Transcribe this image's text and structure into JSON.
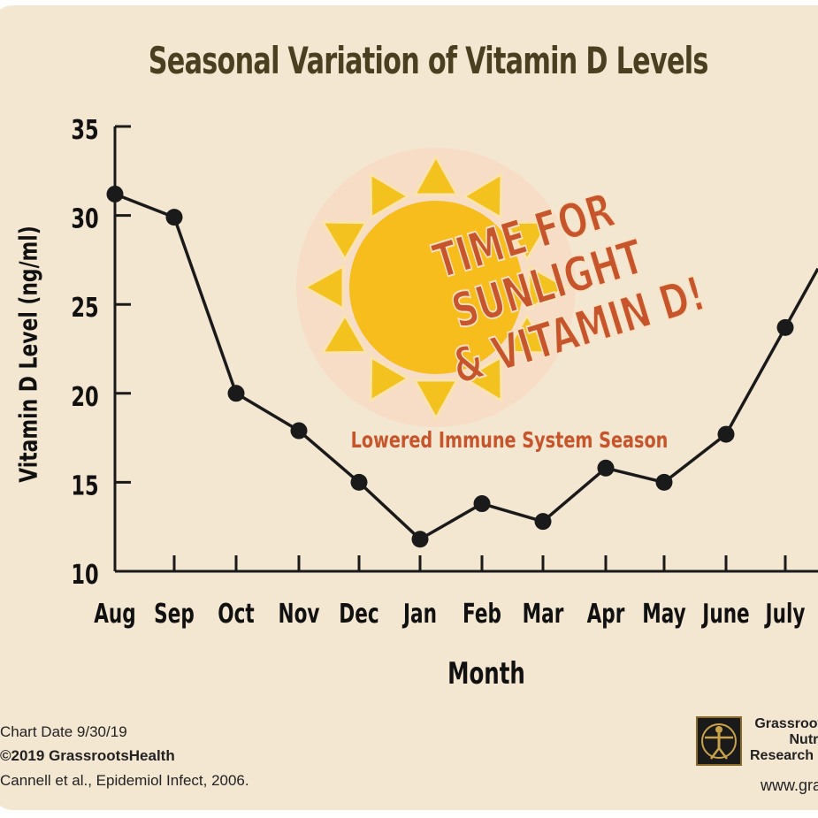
{
  "chart_data": {
    "type": "line",
    "title": "Seasonal Variation of Vitamin D Levels",
    "xlabel": "Month",
    "ylabel": "Vitamin D Level (ng/ml)",
    "categories": [
      "Aug",
      "Sep",
      "Oct",
      "Nov",
      "Dec",
      "Jan",
      "Feb",
      "Mar",
      "Apr",
      "May",
      "June",
      "July"
    ],
    "values": [
      31.2,
      29.9,
      20.0,
      17.9,
      15.0,
      11.8,
      13.8,
      12.8,
      15.8,
      15.0,
      17.7,
      23.7
    ],
    "ylim": [
      10,
      35
    ],
    "yticks": [
      10,
      15,
      20,
      25,
      30,
      35
    ],
    "grid": false,
    "line_color": "#1a1a1a",
    "annotations": {
      "sun_text_lines": [
        "TIME FOR",
        "SUNLIGHT",
        "& VITAMIN D!"
      ],
      "season_label": "Lowered Immune System Season"
    }
  },
  "footer": {
    "chart_date": "Chart Date 9/30/19",
    "copyright": "©2019 GrassrootsHealth",
    "source": "Cannell et al., Epidemiol Infect, 2006."
  },
  "org": {
    "lines": [
      "Grassroots",
      "Nutrie",
      "Research In"
    ],
    "website": "www.gra"
  },
  "colors": {
    "background": "#f3e7d2",
    "sun_core": "#f6bd1c",
    "sun_ray": "#f3c21f",
    "annotation_text": "#c7552b",
    "title_text": "#4a4020"
  }
}
